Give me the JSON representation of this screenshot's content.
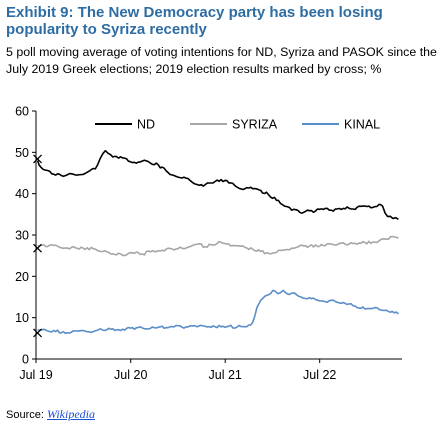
{
  "title": "Exhibit 9: The New Democracy party has been losing popularity to Syriza recently",
  "subtitle": "5 poll moving average of voting intentions for ND, Syriza and PASOK since the July 2019 Greek elections; 2019 election results marked by cross; %",
  "source": {
    "label": "Source:",
    "link_text": "Wikipedia"
  },
  "colors": {
    "title": "#2e6da4",
    "nd": "#000000",
    "syriza": "#a6a6a6",
    "kinal": "#5b8ec8",
    "axis": "#000000"
  },
  "chart_data": {
    "type": "line",
    "title": "",
    "xlabel": "",
    "ylabel": "",
    "ylim": [
      0,
      60
    ],
    "yticks": [
      0,
      10,
      20,
      30,
      40,
      50,
      60
    ],
    "xlim": [
      "2019-07-01",
      "2023-05-15"
    ],
    "xticks": [
      {
        "date": "2019-07-01",
        "label": "Jul 19"
      },
      {
        "date": "2020-07-01",
        "label": "Jul 20"
      },
      {
        "date": "2021-07-01",
        "label": "Jul 21"
      },
      {
        "date": "2022-07-01",
        "label": "Jul 22"
      }
    ],
    "grid": false,
    "legend": "top-center",
    "series": [
      {
        "name": "ND",
        "color": "#000000",
        "election_2019": {
          "date": "2019-07-07",
          "value": 48.4
        },
        "points": [
          [
            "2019-07-07",
            48.0
          ],
          [
            "2019-07-20",
            46.4
          ],
          [
            "2019-08-15",
            45.6
          ],
          [
            "2019-09-15",
            44.5
          ],
          [
            "2019-10-15",
            44.2
          ],
          [
            "2019-11-15",
            44.8
          ],
          [
            "2019-12-15",
            44.6
          ],
          [
            "2020-01-15",
            45.2
          ],
          [
            "2020-02-15",
            46.0
          ],
          [
            "2020-03-05",
            48.5
          ],
          [
            "2020-03-25",
            50.4
          ],
          [
            "2020-04-15",
            49.4
          ],
          [
            "2020-05-15",
            48.6
          ],
          [
            "2020-06-15",
            48.4
          ],
          [
            "2020-07-15",
            47.6
          ],
          [
            "2020-08-15",
            47.9
          ],
          [
            "2020-09-15",
            47.4
          ],
          [
            "2020-10-15",
            47.0
          ],
          [
            "2020-11-15",
            45.5
          ],
          [
            "2020-12-15",
            44.4
          ],
          [
            "2021-01-15",
            43.8
          ],
          [
            "2021-02-15",
            43.2
          ],
          [
            "2021-03-15",
            42.2
          ],
          [
            "2021-04-15",
            42.2
          ],
          [
            "2021-05-15",
            42.6
          ],
          [
            "2021-06-15",
            43.4
          ],
          [
            "2021-07-15",
            42.6
          ],
          [
            "2021-08-15",
            41.6
          ],
          [
            "2021-09-15",
            41.2
          ],
          [
            "2021-10-15",
            41.2
          ],
          [
            "2021-11-15",
            40.8
          ],
          [
            "2021-12-15",
            39.8
          ],
          [
            "2022-01-15",
            38.4
          ],
          [
            "2022-02-15",
            37.0
          ],
          [
            "2022-03-15",
            36.0
          ],
          [
            "2022-04-15",
            35.5
          ],
          [
            "2022-05-15",
            36.0
          ],
          [
            "2022-06-15",
            35.8
          ],
          [
            "2022-07-15",
            36.2
          ],
          [
            "2022-08-15",
            36.0
          ],
          [
            "2022-09-15",
            36.4
          ],
          [
            "2022-10-15",
            36.8
          ],
          [
            "2022-11-15",
            36.2
          ],
          [
            "2022-12-15",
            37.0
          ],
          [
            "2023-01-15",
            36.6
          ],
          [
            "2023-02-15",
            37.4
          ],
          [
            "2023-03-01",
            37.0
          ],
          [
            "2023-03-20",
            34.5
          ],
          [
            "2023-04-10",
            34.0
          ],
          [
            "2023-05-01",
            33.8
          ]
        ]
      },
      {
        "name": "SYRIZA",
        "color": "#a6a6a6",
        "election_2019": {
          "date": "2019-07-07",
          "value": 26.8
        },
        "points": [
          [
            "2019-07-07",
            27.4
          ],
          [
            "2019-08-15",
            27.2
          ],
          [
            "2019-09-15",
            27.5
          ],
          [
            "2019-10-15",
            26.8
          ],
          [
            "2019-11-15",
            27.0
          ],
          [
            "2019-12-15",
            26.6
          ],
          [
            "2020-01-15",
            26.9
          ],
          [
            "2020-02-15",
            26.6
          ],
          [
            "2020-03-15",
            26.0
          ],
          [
            "2020-04-15",
            25.4
          ],
          [
            "2020-05-15",
            25.6
          ],
          [
            "2020-06-15",
            25.2
          ],
          [
            "2020-07-15",
            25.6
          ],
          [
            "2020-08-15",
            25.4
          ],
          [
            "2020-09-15",
            25.9
          ],
          [
            "2020-10-15",
            26.2
          ],
          [
            "2020-11-15",
            26.6
          ],
          [
            "2020-12-15",
            26.4
          ],
          [
            "2021-01-15",
            26.8
          ],
          [
            "2021-02-15",
            27.2
          ],
          [
            "2021-03-15",
            27.8
          ],
          [
            "2021-04-15",
            27.2
          ],
          [
            "2021-05-15",
            27.6
          ],
          [
            "2021-06-15",
            28.2
          ],
          [
            "2021-07-15",
            27.8
          ],
          [
            "2021-08-15",
            27.4
          ],
          [
            "2021-09-15",
            27.0
          ],
          [
            "2021-10-15",
            26.6
          ],
          [
            "2021-11-15",
            26.0
          ],
          [
            "2021-12-15",
            25.6
          ],
          [
            "2022-01-15",
            25.8
          ],
          [
            "2022-02-15",
            26.4
          ],
          [
            "2022-03-15",
            26.8
          ],
          [
            "2022-04-15",
            27.4
          ],
          [
            "2022-05-15",
            27.0
          ],
          [
            "2022-06-15",
            27.6
          ],
          [
            "2022-07-15",
            27.4
          ],
          [
            "2022-08-15",
            27.8
          ],
          [
            "2022-09-15",
            28.0
          ],
          [
            "2022-10-15",
            27.6
          ],
          [
            "2022-11-15",
            28.0
          ],
          [
            "2022-12-15",
            28.4
          ],
          [
            "2023-01-15",
            28.0
          ],
          [
            "2023-02-15",
            28.6
          ],
          [
            "2023-03-15",
            29.0
          ],
          [
            "2023-04-01",
            29.6
          ],
          [
            "2023-05-01",
            29.2
          ]
        ]
      },
      {
        "name": "KINAL",
        "color": "#5b8ec8",
        "election_2019": {
          "date": "2019-07-07",
          "value": 6.3
        },
        "points": [
          [
            "2019-07-07",
            7.0
          ],
          [
            "2019-08-15",
            6.8
          ],
          [
            "2019-09-15",
            6.6
          ],
          [
            "2019-10-15",
            6.6
          ],
          [
            "2019-11-15",
            6.5
          ],
          [
            "2019-12-15",
            6.8
          ],
          [
            "2020-01-15",
            6.6
          ],
          [
            "2020-02-15",
            6.8
          ],
          [
            "2020-03-15",
            7.0
          ],
          [
            "2020-04-15",
            7.2
          ],
          [
            "2020-05-15",
            7.1
          ],
          [
            "2020-06-15",
            7.4
          ],
          [
            "2020-07-15",
            7.2
          ],
          [
            "2020-08-15",
            7.5
          ],
          [
            "2020-09-15",
            7.4
          ],
          [
            "2020-10-15",
            7.7
          ],
          [
            "2020-11-15",
            7.6
          ],
          [
            "2020-12-15",
            7.8
          ],
          [
            "2021-01-15",
            7.7
          ],
          [
            "2021-02-15",
            8.0
          ],
          [
            "2021-03-15",
            7.8
          ],
          [
            "2021-04-15",
            7.9
          ],
          [
            "2021-05-15",
            8.0
          ],
          [
            "2021-06-15",
            7.8
          ],
          [
            "2021-07-15",
            7.9
          ],
          [
            "2021-08-15",
            7.7
          ],
          [
            "2021-09-15",
            7.8
          ],
          [
            "2021-10-15",
            8.8
          ],
          [
            "2021-11-01",
            12.5
          ],
          [
            "2021-11-15",
            14.2
          ],
          [
            "2021-12-10",
            15.4
          ],
          [
            "2022-01-01",
            16.6
          ],
          [
            "2022-01-20",
            15.8
          ],
          [
            "2022-02-10",
            16.6
          ],
          [
            "2022-03-05",
            15.6
          ],
          [
            "2022-03-25",
            16.0
          ],
          [
            "2022-04-20",
            15.0
          ],
          [
            "2022-05-15",
            14.6
          ],
          [
            "2022-06-15",
            14.4
          ],
          [
            "2022-07-15",
            14.0
          ],
          [
            "2022-08-15",
            14.2
          ],
          [
            "2022-09-15",
            13.6
          ],
          [
            "2022-10-15",
            13.2
          ],
          [
            "2022-11-15",
            12.8
          ],
          [
            "2022-12-15",
            12.6
          ],
          [
            "2023-01-15",
            12.2
          ],
          [
            "2023-02-15",
            12.0
          ],
          [
            "2023-03-15",
            11.8
          ],
          [
            "2023-04-15",
            11.2
          ],
          [
            "2023-05-01",
            10.9
          ]
        ]
      }
    ]
  }
}
